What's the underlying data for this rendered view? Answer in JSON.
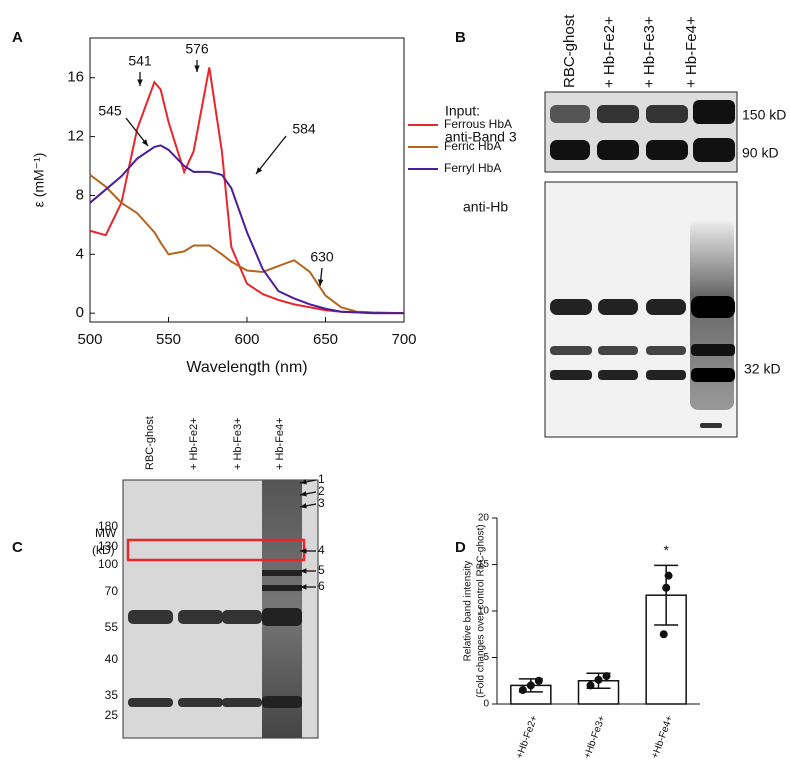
{
  "chart_data": [
    {
      "type": "line",
      "panel": "A",
      "xlabel": "Wavelength (nm)",
      "ylabel": "ε (mM⁻¹)",
      "x": [
        500,
        510,
        520,
        530,
        541,
        545,
        550,
        560,
        566,
        576,
        584,
        590,
        600,
        610,
        620,
        630,
        640,
        650,
        660,
        670,
        680,
        700
      ],
      "series": [
        {
          "name": "Ferrous HbA",
          "color": "#e8262b",
          "values": [
            5.6,
            5.3,
            7.5,
            12.5,
            15.7,
            15.2,
            13,
            9.6,
            11,
            16.7,
            11,
            4.5,
            2.0,
            1.3,
            0.9,
            0.6,
            0.4,
            0.2,
            0.1,
            0.05,
            0,
            0
          ]
        },
        {
          "name": "Ferric HbA",
          "color": "#b5651d",
          "values": [
            9.4,
            8.6,
            7.5,
            6.8,
            5.5,
            4.8,
            4.0,
            4.2,
            4.6,
            4.6,
            4.0,
            3.5,
            2.9,
            2.8,
            3.2,
            3.6,
            2.8,
            1.2,
            0.4,
            0.1,
            0.05,
            0
          ]
        },
        {
          "name": "Ferryl HbA",
          "color": "#4b1d9c",
          "values": [
            7.5,
            8.4,
            9.3,
            10.5,
            11.3,
            11.4,
            11.1,
            10.0,
            9.6,
            9.6,
            9.4,
            8.5,
            5.5,
            3.0,
            1.5,
            1.0,
            0.6,
            0.3,
            0.1,
            0.05,
            0,
            0
          ]
        }
      ],
      "xlim": [
        500,
        700
      ],
      "xticks": [
        500,
        550,
        600,
        650,
        700
      ],
      "ylim": [
        -0.6,
        18.7
      ],
      "yticks": [
        0,
        4,
        8,
        12,
        16
      ],
      "legend": "upper right",
      "annotations": [
        "541",
        "576",
        "545",
        "584",
        "630"
      ]
    },
    {
      "type": "bar",
      "panel": "D",
      "ylabel": [
        "Relative band intensity",
        "(Fold changes over control RBC-ghost)"
      ],
      "categories": [
        "+Hb-Fe2+",
        "+Hb-Fe3+",
        "+Hb-Fe4+"
      ],
      "values": [
        2.0,
        2.5,
        11.7
      ],
      "errors": [
        0.7,
        0.8,
        3.2
      ],
      "points": [
        [
          1.5,
          2.0,
          2.5
        ],
        [
          2.0,
          2.6,
          3.0
        ],
        [
          7.5,
          12.5,
          13.8
        ]
      ],
      "color": "#ffffff",
      "ylim": [
        0,
        20
      ],
      "yticks": [
        0,
        5,
        10,
        15,
        20
      ],
      "annotations": [
        "*"
      ]
    }
  ],
  "blot_panel": {
    "panel": "B",
    "lanes": [
      "RBC-ghost",
      "+ Hb-Fe2+",
      "+ Hb-Fe3+",
      "+ Hb-Fe4+"
    ],
    "input_label": "Input:",
    "band3_label": "anti-Band 3",
    "hb_label": "anti-Hb",
    "markers": [
      "150 kD",
      "90 kD",
      "32 kD"
    ]
  },
  "gel_panel": {
    "panel": "C",
    "mw_label": "MW",
    "unit_label": "(kD)",
    "lanes": [
      "RBC-ghost",
      "+ Hb-Fe2+",
      "+ Hb-Fe3+",
      "+ Hb-Fe4+"
    ],
    "markers": [
      "180",
      "130",
      "100",
      "70",
      "55",
      "40",
      "35",
      "25"
    ],
    "arrows": [
      "1",
      "2",
      "3",
      "4",
      "5",
      "6"
    ]
  }
}
